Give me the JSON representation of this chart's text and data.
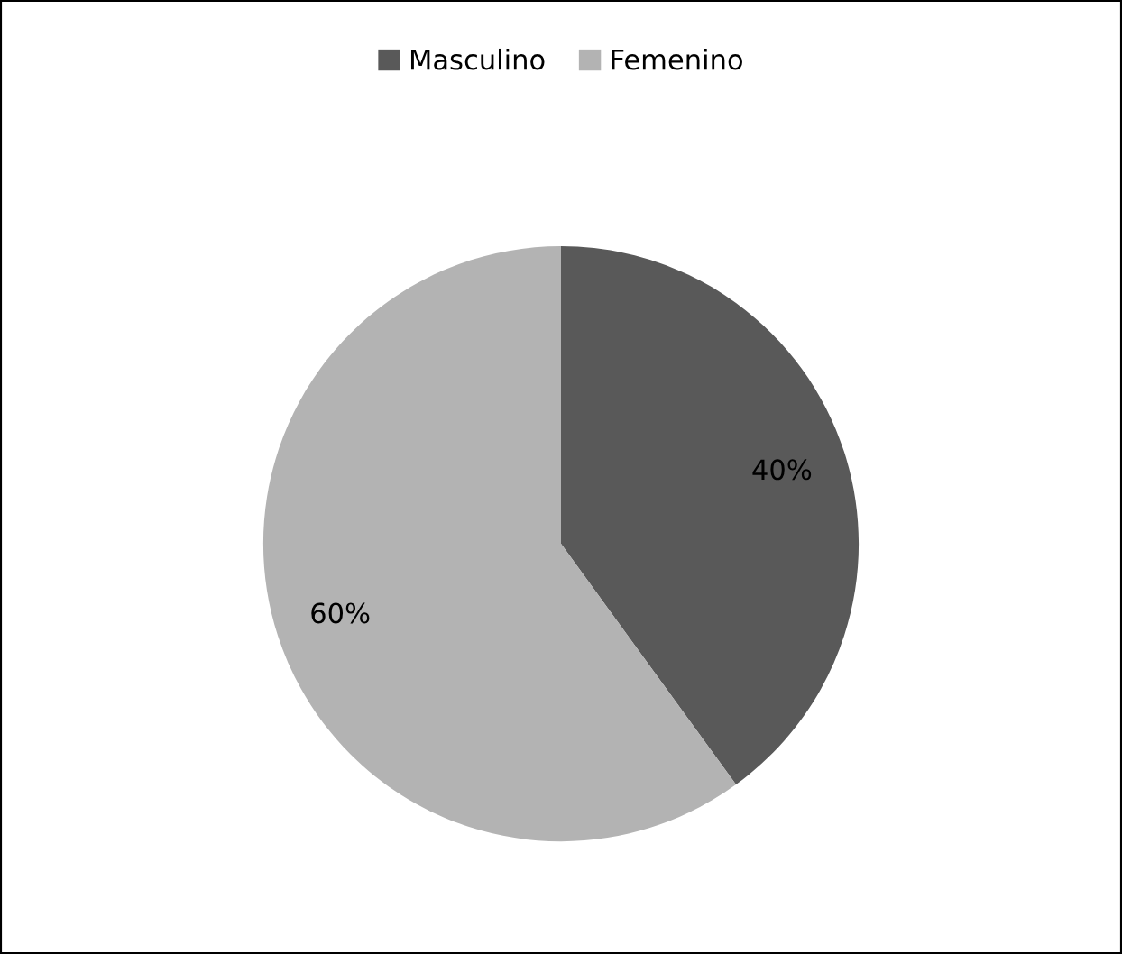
{
  "chart_data": {
    "type": "pie",
    "categories": [
      "Masculino",
      "Femenino"
    ],
    "values": [
      40,
      60
    ],
    "colors": [
      "#595959",
      "#b3b3b3"
    ],
    "value_labels": [
      "40%",
      "60%"
    ],
    "legend": "top"
  }
}
